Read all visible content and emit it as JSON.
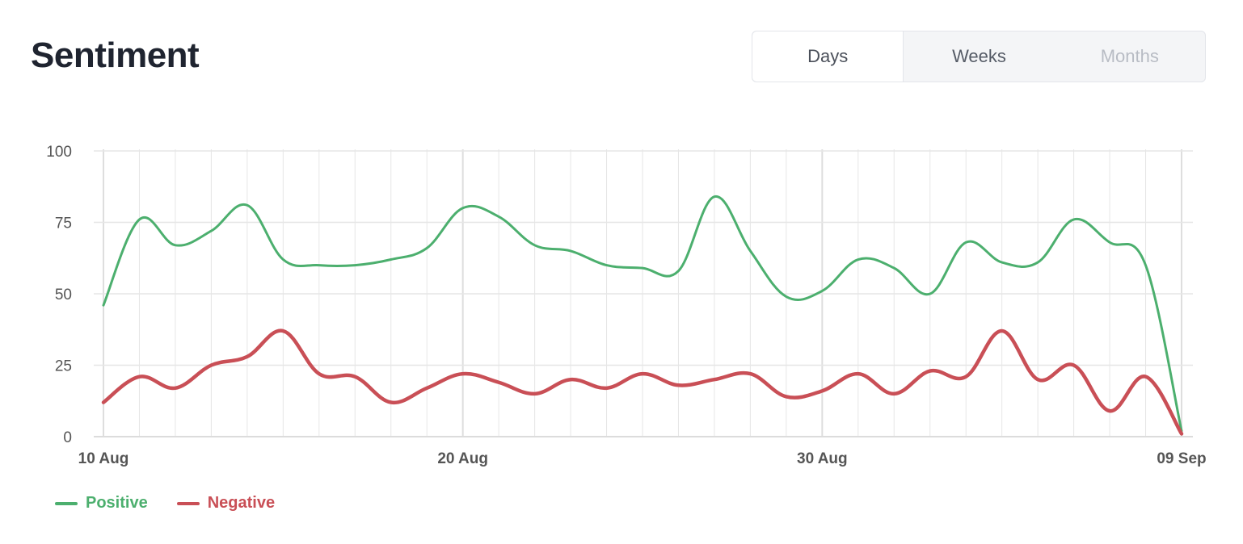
{
  "header": {
    "title": "Sentiment"
  },
  "range_toggle": {
    "options": [
      "Days",
      "Weeks",
      "Months"
    ],
    "selected": "Days"
  },
  "colors": {
    "positive": "#4caf6e",
    "negative": "#c94f56",
    "grid": "#e6e6e6",
    "axis_text": "#555555"
  },
  "chart_data": {
    "type": "line",
    "xlabel": "",
    "ylabel": "",
    "ylim": [
      0,
      100
    ],
    "y_ticks": [
      "0",
      "25",
      "50",
      "75",
      "100"
    ],
    "x": [
      "10 Aug",
      "11 Aug",
      "12 Aug",
      "13 Aug",
      "14 Aug",
      "15 Aug",
      "16 Aug",
      "17 Aug",
      "18 Aug",
      "19 Aug",
      "20 Aug",
      "21 Aug",
      "22 Aug",
      "23 Aug",
      "24 Aug",
      "25 Aug",
      "26 Aug",
      "27 Aug",
      "28 Aug",
      "29 Aug",
      "30 Aug",
      "31 Aug",
      "01 Sep",
      "02 Sep",
      "03 Sep",
      "04 Sep",
      "05 Sep",
      "06 Sep",
      "07 Sep",
      "08 Sep",
      "09 Sep"
    ],
    "x_tick_labels": [
      "10 Aug",
      "20 Aug",
      "30 Aug",
      "09 Sep"
    ],
    "x_tick_indices": [
      0,
      10,
      20,
      30
    ],
    "grid": true,
    "legend_position": "bottom-left",
    "series": [
      {
        "name": "Positive",
        "color": "#4caf6e",
        "values": [
          46,
          76,
          67,
          72,
          81,
          62,
          60,
          60,
          62,
          66,
          80,
          77,
          67,
          65,
          60,
          59,
          58,
          84,
          65,
          49,
          51,
          62,
          59,
          50,
          68,
          61,
          61,
          76,
          68,
          60,
          2
        ]
      },
      {
        "name": "Negative",
        "color": "#c94f56",
        "values": [
          12,
          21,
          17,
          25,
          28,
          37,
          22,
          21,
          12,
          17,
          22,
          19,
          15,
          20,
          17,
          22,
          18,
          20,
          22,
          14,
          16,
          22,
          15,
          23,
          21,
          37,
          20,
          25,
          9,
          21,
          1
        ]
      }
    ]
  }
}
